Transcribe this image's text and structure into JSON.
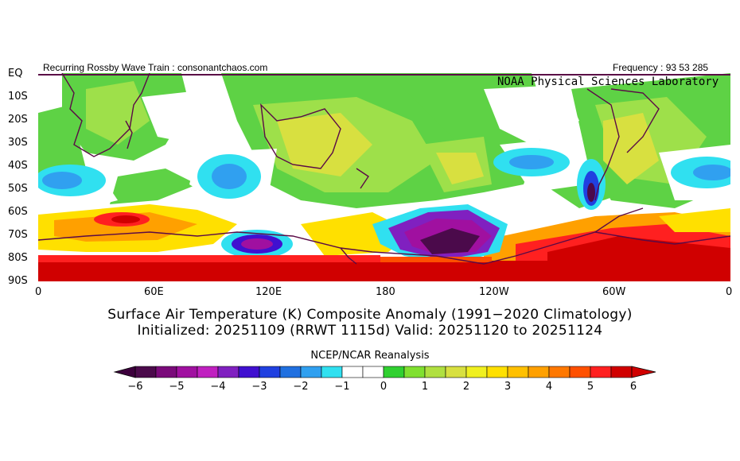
{
  "header": {
    "left_text": "Recurring Rossby Wave Train : consonantchaos.com",
    "right_text": "Frequency : 93 53 285",
    "brand": "NOAA Physical Sciences Laboratory"
  },
  "map": {
    "lat_labels": [
      "EQ",
      "10S",
      "20S",
      "30S",
      "40S",
      "50S",
      "60S",
      "70S",
      "80S",
      "90S"
    ],
    "lon_labels": [
      "0",
      "60E",
      "120E",
      "180",
      "120W",
      "60W",
      "0"
    ]
  },
  "titles": {
    "line1": "Surface Air Temperature (K) Composite Anomaly (1991−2020 Climatology)",
    "line2": "Initialized: 20251109 (RRWT 1115d) Valid: 20251120 to 20251124"
  },
  "colorbar": {
    "title": "NCEP/NCAR Reanalysis",
    "tick_labels": [
      "−6",
      "−5",
      "−4",
      "−3",
      "−2",
      "−1",
      "0",
      "1",
      "2",
      "3",
      "4",
      "5",
      "6"
    ],
    "colors": [
      "#4b0a4b",
      "#7a0a7a",
      "#a010a0",
      "#c020c0",
      "#8020c0",
      "#4010d0",
      "#2040e0",
      "#2070e0",
      "#30a0f0",
      "#30e0f0",
      "#ffffff",
      "#ffffff",
      "#30d030",
      "#80e030",
      "#b0e040",
      "#d8e040",
      "#f0f020",
      "#ffe000",
      "#ffc000",
      "#ffa000",
      "#ff7800",
      "#ff5000",
      "#ff2020",
      "#d00000"
    ],
    "min_color": "#3c003c",
    "max_color": "#d00000"
  }
}
